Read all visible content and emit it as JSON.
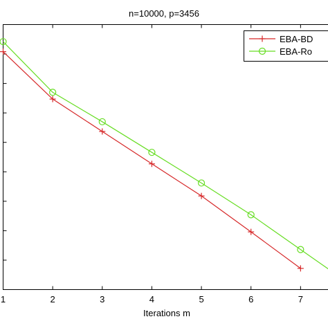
{
  "chart_data": {
    "type": "line",
    "title": "n=10000, p=3456",
    "xlabel": "Iterations m",
    "ylabel": "",
    "x_ticks": [
      1,
      2,
      3,
      4,
      5,
      6,
      7
    ],
    "xlim": [
      1,
      7.7
    ],
    "ylim": [
      0,
      9
    ],
    "grid": false,
    "legend_position": "top-right",
    "series": [
      {
        "name": "EBA-BD",
        "color": "#d62728",
        "marker": "plus",
        "x": [
          1,
          2,
          3,
          4,
          5,
          6,
          7
        ],
        "y": [
          8.08,
          6.47,
          5.37,
          4.27,
          3.18,
          1.96,
          0.72
        ],
        "extend_to_frame": false
      },
      {
        "name": "EBA-Ro",
        "color": "#66dd22",
        "marker": "circle",
        "x": [
          1,
          2,
          3,
          4,
          5,
          6,
          7
        ],
        "y": [
          8.42,
          6.7,
          5.7,
          4.66,
          3.62,
          2.54,
          1.36
        ],
        "extend_to_frame": true
      }
    ]
  }
}
